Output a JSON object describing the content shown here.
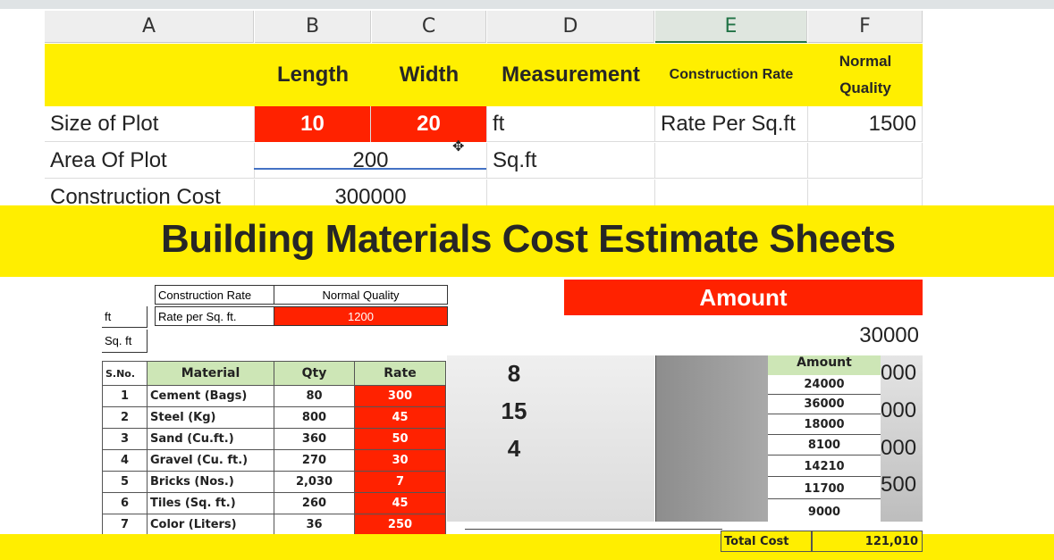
{
  "columns": [
    "A",
    "B",
    "C",
    "D",
    "E",
    "F"
  ],
  "header_row": {
    "length": "Length",
    "width": "Width",
    "measurement": "Measurement",
    "construction_rate": "Construction Rate",
    "normal": "Normal",
    "quality": "Quality"
  },
  "rows": {
    "size_of_plot": {
      "label": "Size of Plot",
      "length": "10",
      "width": "20",
      "unit": "ft",
      "rate_label": "Rate Per Sq.ft",
      "rate_value": "1500"
    },
    "area_of_plot": {
      "label": "Area Of Plot",
      "value": "200",
      "unit": "Sq.ft"
    },
    "construction_cost": {
      "label": "Construction Cost",
      "value": "300000"
    }
  },
  "banner": {
    "title": "Building Materials Cost Estimate Sheets"
  },
  "small_table": {
    "construction_rate": "Construction Rate",
    "normal_quality": "Normal Quality",
    "rate_per_sqft_label": "Rate per Sq. ft.",
    "rate_per_sqft_value": "1200",
    "ft": "ft",
    "sqft": "Sq. ft"
  },
  "materials": {
    "headers": {
      "sno": "S.No.",
      "material": "Material",
      "qty": "Qty",
      "rate": "Rate"
    },
    "rows": [
      {
        "no": "1",
        "name": "Cement (Bags)",
        "qty": "80",
        "rate": "300"
      },
      {
        "no": "2",
        "name": "Steel (Kg)",
        "qty": "800",
        "rate": "45"
      },
      {
        "no": "3",
        "name": "Sand (Cu.ft.)",
        "qty": "360",
        "rate": "50"
      },
      {
        "no": "4",
        "name": "Gravel (Cu. ft.)",
        "qty": "270",
        "rate": "30"
      },
      {
        "no": "5",
        "name": "Bricks (Nos.)",
        "qty": "2,030",
        "rate": "7"
      },
      {
        "no": "6",
        "name": "Tiles (Sq. ft.)",
        "qty": "260",
        "rate": "45"
      },
      {
        "no": "7",
        "name": "Color (Liters)",
        "qty": "36",
        "rate": "250"
      }
    ]
  },
  "amount_panel": {
    "title": "Amount",
    "value": "30000",
    "numbers": [
      "8",
      "15",
      "4"
    ],
    "column_header": "Amount",
    "amounts": [
      "24000",
      "36000",
      "18000",
      "8100",
      "14210",
      "11700",
      "9000"
    ],
    "partial_right": [
      "000",
      "000",
      "000",
      "500"
    ],
    "total_label": "Total Cost",
    "total_value": "121,010"
  },
  "colors": {
    "accent_yellow": "#ffee00",
    "accent_red": "#ff2200",
    "header_green": "#cde6b6"
  }
}
